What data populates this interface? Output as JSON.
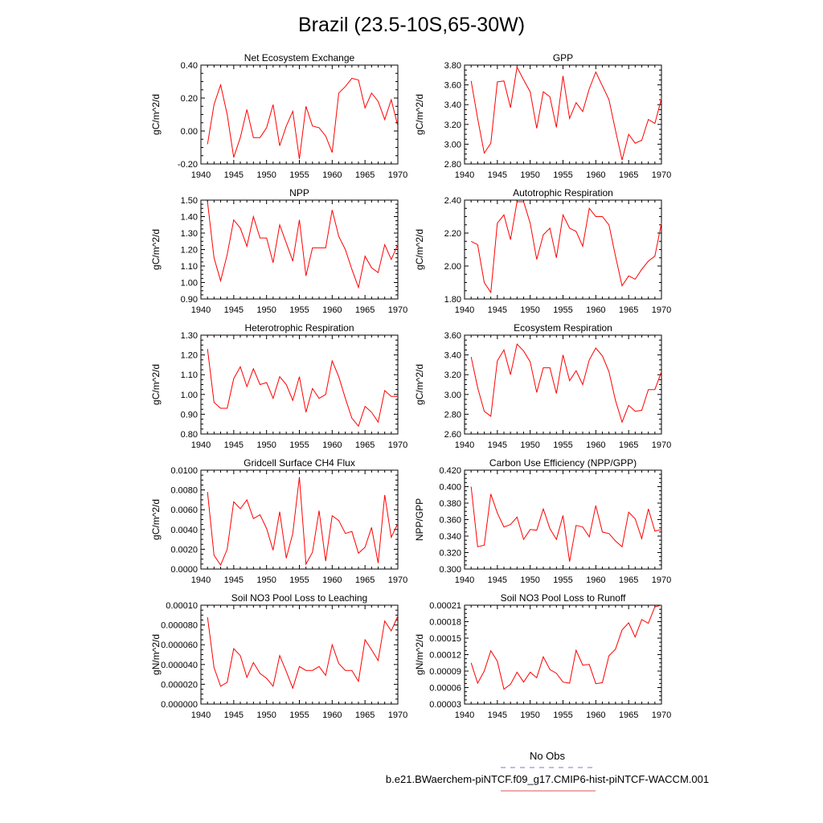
{
  "figure": {
    "title": "Brazil (23.5-10S,65-30W)",
    "legend": [
      {
        "label": "No Obs",
        "color": "#7777dd",
        "style": "dashed"
      },
      {
        "label": "b.e21.BWaerchem-piNTCF.f09_g17.CMIP6-hist-piNTCF-WACCM.001",
        "color": "#e05050",
        "style": "solid"
      }
    ],
    "line_color": "#ff0000"
  },
  "chart_data": [
    {
      "type": "line",
      "title": "Net Ecosystem Exchange",
      "ylabel": "gC/m^2/d",
      "xlim": [
        1940,
        1970
      ],
      "xticks": [
        "1940",
        "1945",
        "1950",
        "1955",
        "1960",
        "1965",
        "1970"
      ],
      "ylim": [
        -0.2,
        0.4
      ],
      "yticks": [
        "-0.20",
        "0.00",
        "0.20",
        "0.40"
      ],
      "series": [
        {
          "x": [
            1941,
            1942,
            1943,
            1944,
            1945,
            1946,
            1947,
            1948,
            1949,
            1950,
            1951,
            1952,
            1953,
            1954,
            1955,
            1956,
            1957,
            1958,
            1959,
            1960,
            1961,
            1962,
            1963,
            1964,
            1965,
            1966,
            1967,
            1968,
            1969,
            1970
          ],
          "values": [
            -0.08,
            0.16,
            0.28,
            0.1,
            -0.16,
            -0.04,
            0.13,
            -0.04,
            -0.04,
            0.02,
            0.16,
            -0.09,
            0.03,
            0.12,
            -0.17,
            0.15,
            0.03,
            0.02,
            -0.03,
            -0.13,
            0.23,
            0.27,
            0.32,
            0.31,
            0.14,
            0.23,
            0.18,
            0.07,
            0.19,
            0.03
          ]
        }
      ]
    },
    {
      "type": "line",
      "title": "GPP",
      "ylabel": "gC/m^2/d",
      "xlim": [
        1940,
        1970
      ],
      "xticks": [
        "1940",
        "1945",
        "1950",
        "1955",
        "1960",
        "1965",
        "1970"
      ],
      "ylim": [
        2.8,
        3.8
      ],
      "yticks": [
        "2.80",
        "3.00",
        "3.20",
        "3.40",
        "3.60",
        "3.80"
      ],
      "series": [
        {
          "x": [
            1941,
            1942,
            1943,
            1944,
            1945,
            1946,
            1947,
            1948,
            1949,
            1950,
            1951,
            1952,
            1953,
            1954,
            1955,
            1956,
            1957,
            1958,
            1959,
            1960,
            1961,
            1962,
            1963,
            1964,
            1965,
            1966,
            1967,
            1968,
            1969,
            1970
          ],
          "values": [
            3.64,
            3.26,
            2.91,
            3.01,
            3.63,
            3.64,
            3.37,
            3.78,
            3.65,
            3.53,
            3.16,
            3.53,
            3.48,
            3.17,
            3.69,
            3.26,
            3.42,
            3.33,
            3.56,
            3.73,
            3.59,
            3.45,
            3.14,
            2.84,
            3.1,
            3.01,
            3.04,
            3.25,
            3.21,
            3.46
          ]
        }
      ]
    },
    {
      "type": "line",
      "title": "NPP",
      "ylabel": "gC/m^2/d",
      "xlim": [
        1940,
        1970
      ],
      "xticks": [
        "1940",
        "1945",
        "1950",
        "1955",
        "1960",
        "1965",
        "1970"
      ],
      "ylim": [
        0.9,
        1.5
      ],
      "yticks": [
        "0.90",
        "1.00",
        "1.10",
        "1.20",
        "1.30",
        "1.40",
        "1.50"
      ],
      "series": [
        {
          "x": [
            1941,
            1942,
            1943,
            1944,
            1945,
            1946,
            1947,
            1948,
            1949,
            1950,
            1951,
            1952,
            1953,
            1954,
            1955,
            1956,
            1957,
            1958,
            1959,
            1960,
            1961,
            1962,
            1963,
            1964,
            1965,
            1966,
            1967,
            1968,
            1969,
            1970
          ],
          "values": [
            1.49,
            1.15,
            1.01,
            1.17,
            1.38,
            1.33,
            1.22,
            1.4,
            1.27,
            1.27,
            1.12,
            1.35,
            1.24,
            1.13,
            1.38,
            1.04,
            1.21,
            1.21,
            1.21,
            1.44,
            1.28,
            1.2,
            1.08,
            0.97,
            1.16,
            1.09,
            1.06,
            1.23,
            1.14,
            1.23
          ]
        }
      ]
    },
    {
      "type": "line",
      "title": "Autotrophic Respiration",
      "ylabel": "gC/m^2/d",
      "xlim": [
        1940,
        1970
      ],
      "xticks": [
        "1940",
        "1945",
        "1950",
        "1955",
        "1960",
        "1965",
        "1970"
      ],
      "ylim": [
        1.8,
        2.4
      ],
      "yticks": [
        "1.80",
        "2.00",
        "2.20",
        "2.40"
      ],
      "series": [
        {
          "x": [
            1941,
            1942,
            1943,
            1944,
            1945,
            1946,
            1947,
            1948,
            1949,
            1950,
            1951,
            1952,
            1953,
            1954,
            1955,
            1956,
            1957,
            1958,
            1959,
            1960,
            1961,
            1962,
            1963,
            1964,
            1965,
            1966,
            1967,
            1968,
            1969,
            1970
          ],
          "values": [
            2.15,
            2.13,
            1.9,
            1.84,
            2.26,
            2.31,
            2.16,
            2.39,
            2.39,
            2.26,
            2.04,
            2.19,
            2.23,
            2.05,
            2.31,
            2.23,
            2.21,
            2.12,
            2.35,
            2.3,
            2.3,
            2.25,
            2.06,
            1.88,
            1.94,
            1.92,
            1.98,
            2.03,
            2.06,
            2.26
          ]
        }
      ]
    },
    {
      "type": "line",
      "title": "Heterotrophic Respiration",
      "ylabel": "gC/m^2/d",
      "xlim": [
        1940,
        1970
      ],
      "xticks": [
        "1940",
        "1945",
        "1950",
        "1955",
        "1960",
        "1965",
        "1970"
      ],
      "ylim": [
        0.8,
        1.3
      ],
      "yticks": [
        "0.80",
        "0.90",
        "1.00",
        "1.10",
        "1.20",
        "1.30"
      ],
      "series": [
        {
          "x": [
            1941,
            1942,
            1943,
            1944,
            1945,
            1946,
            1947,
            1948,
            1949,
            1950,
            1951,
            1952,
            1953,
            1954,
            1955,
            1956,
            1957,
            1958,
            1959,
            1960,
            1961,
            1962,
            1963,
            1964,
            1965,
            1966,
            1967,
            1968,
            1969,
            1970
          ],
          "values": [
            1.23,
            0.96,
            0.93,
            0.93,
            1.08,
            1.14,
            1.04,
            1.13,
            1.05,
            1.06,
            0.98,
            1.09,
            1.05,
            0.97,
            1.09,
            0.91,
            1.03,
            0.98,
            1.0,
            1.17,
            1.09,
            0.98,
            0.88,
            0.84,
            0.94,
            0.91,
            0.86,
            1.02,
            0.99,
            0.99
          ]
        }
      ]
    },
    {
      "type": "line",
      "title": "Ecosystem Respiration",
      "ylabel": "gC/m^2/d",
      "xlim": [
        1940,
        1970
      ],
      "xticks": [
        "1940",
        "1945",
        "1950",
        "1955",
        "1960",
        "1965",
        "1970"
      ],
      "ylim": [
        2.6,
        3.6
      ],
      "yticks": [
        "2.60",
        "2.80",
        "3.00",
        "3.20",
        "3.40",
        "3.60"
      ],
      "series": [
        {
          "x": [
            1941,
            1942,
            1943,
            1944,
            1945,
            1946,
            1947,
            1948,
            1949,
            1950,
            1951,
            1952,
            1953,
            1954,
            1955,
            1956,
            1957,
            1958,
            1959,
            1960,
            1961,
            1962,
            1963,
            1964,
            1965,
            1966,
            1967,
            1968,
            1969,
            1970
          ],
          "values": [
            3.38,
            3.07,
            2.83,
            2.78,
            3.34,
            3.45,
            3.2,
            3.51,
            3.44,
            3.33,
            3.02,
            3.27,
            3.27,
            3.01,
            3.4,
            3.14,
            3.24,
            3.1,
            3.35,
            3.47,
            3.39,
            3.23,
            2.94,
            2.72,
            2.89,
            2.83,
            2.84,
            3.05,
            3.05,
            3.23
          ]
        }
      ]
    },
    {
      "type": "line",
      "title": "Gridcell Surface CH4 Flux",
      "ylabel": "gC/m^2/d",
      "xlim": [
        1940,
        1970
      ],
      "xticks": [
        "1940",
        "1945",
        "1950",
        "1955",
        "1960",
        "1965",
        "1970"
      ],
      "ylim": [
        0.0,
        0.01
      ],
      "yticks": [
        "0.0000",
        "0.0020",
        "0.0040",
        "0.0060",
        "0.0080",
        "0.0100"
      ],
      "series": [
        {
          "x": [
            1941,
            1942,
            1943,
            1944,
            1945,
            1946,
            1947,
            1948,
            1949,
            1950,
            1951,
            1952,
            1953,
            1954,
            1955,
            1956,
            1957,
            1958,
            1959,
            1960,
            1961,
            1962,
            1963,
            1964,
            1965,
            1966,
            1967,
            1968,
            1969,
            1970
          ],
          "values": [
            0.0078,
            0.0014,
            0.0004,
            0.002,
            0.0068,
            0.0061,
            0.007,
            0.0051,
            0.0055,
            0.0041,
            0.0019,
            0.0058,
            0.0011,
            0.0036,
            0.0093,
            0.0005,
            0.0017,
            0.0059,
            0.0008,
            0.0054,
            0.0049,
            0.0036,
            0.0038,
            0.0016,
            0.0022,
            0.0042,
            0.0006,
            0.0075,
            0.0032,
            0.0046
          ]
        }
      ]
    },
    {
      "type": "line",
      "title": "Carbon Use Efficiency (NPP/GPP)",
      "ylabel": "NPP/GPP",
      "xlim": [
        1940,
        1970
      ],
      "xticks": [
        "1940",
        "1945",
        "1950",
        "1955",
        "1960",
        "1965",
        "1970"
      ],
      "ylim": [
        0.3,
        0.42
      ],
      "yticks": [
        "0.300",
        "0.320",
        "0.340",
        "0.360",
        "0.380",
        "0.400",
        "0.420"
      ],
      "series": [
        {
          "x": [
            1941,
            1942,
            1943,
            1944,
            1945,
            1946,
            1947,
            1948,
            1949,
            1950,
            1951,
            1952,
            1953,
            1954,
            1955,
            1956,
            1957,
            1958,
            1959,
            1960,
            1961,
            1962,
            1963,
            1964,
            1965,
            1966,
            1967,
            1968,
            1969,
            1970
          ],
          "values": [
            0.4,
            0.327,
            0.329,
            0.391,
            0.368,
            0.351,
            0.354,
            0.363,
            0.336,
            0.348,
            0.347,
            0.373,
            0.349,
            0.336,
            0.365,
            0.309,
            0.353,
            0.351,
            0.339,
            0.377,
            0.345,
            0.343,
            0.334,
            0.327,
            0.369,
            0.361,
            0.337,
            0.373,
            0.346,
            0.348
          ]
        }
      ]
    },
    {
      "type": "line",
      "title": "Soil NO3 Pool Loss to Leaching",
      "ylabel": "gN/m^2/d",
      "xlim": [
        1940,
        1970
      ],
      "xticks": [
        "1940",
        "1945",
        "1950",
        "1955",
        "1960",
        "1965",
        "1970"
      ],
      "ylim": [
        0.0,
        0.0001
      ],
      "yticks": [
        "0.000000",
        "0.000020",
        "0.000040",
        "0.000060",
        "0.000080",
        "0.00010"
      ],
      "series": [
        {
          "x": [
            1941,
            1942,
            1943,
            1944,
            1945,
            1946,
            1947,
            1948,
            1949,
            1950,
            1951,
            1952,
            1953,
            1954,
            1955,
            1956,
            1957,
            1958,
            1959,
            1960,
            1961,
            1962,
            1963,
            1964,
            1965,
            1966,
            1967,
            1968,
            1969,
            1970
          ],
          "values": [
            8.8e-05,
            3.7e-05,
            1.8e-05,
            2.2e-05,
            5.6e-05,
            4.9e-05,
            2.7e-05,
            4.2e-05,
            3.1e-05,
            2.6e-05,
            1.8e-05,
            4.9e-05,
            3.3e-05,
            1.6e-05,
            3.8e-05,
            3.4e-05,
            3.4e-05,
            3.8e-05,
            2.9e-05,
            6e-05,
            4.1e-05,
            3.4e-05,
            3.4e-05,
            2.3e-05,
            6.5e-05,
            5.5e-05,
            4.4e-05,
            8.4e-05,
            7.4e-05,
            8.9e-05
          ]
        }
      ]
    },
    {
      "type": "line",
      "title": "Soil NO3 Pool Loss to Runoff",
      "ylabel": "gN/m^2/d",
      "xlim": [
        1940,
        1970
      ],
      "xticks": [
        "1940",
        "1945",
        "1950",
        "1955",
        "1960",
        "1965",
        "1970"
      ],
      "ylim": [
        3e-05,
        0.00021
      ],
      "yticks": [
        "0.00003",
        "0.00006",
        "0.00009",
        "0.00012",
        "0.00015",
        "0.00018",
        "0.00021"
      ],
      "series": [
        {
          "x": [
            1941,
            1942,
            1943,
            1944,
            1945,
            1946,
            1947,
            1948,
            1949,
            1950,
            1951,
            1952,
            1953,
            1954,
            1955,
            1956,
            1957,
            1958,
            1959,
            1960,
            1961,
            1962,
            1963,
            1964,
            1965,
            1966,
            1967,
            1968,
            1969,
            1970
          ],
          "values": [
            0.000105,
            6.8e-05,
            9e-05,
            0.000127,
            0.000108,
            5.7e-05,
            6.6e-05,
            8.8e-05,
            7e-05,
            8.8e-05,
            7.8e-05,
            0.000116,
            9.3e-05,
            8.6e-05,
            7e-05,
            6.8e-05,
            0.000128,
            0.000101,
            0.000102,
            6.7e-05,
            6.9e-05,
            0.000118,
            0.00013,
            0.000165,
            0.000178,
            0.000152,
            0.000184,
            0.000177,
            0.000207,
            0.00021
          ]
        }
      ]
    }
  ]
}
